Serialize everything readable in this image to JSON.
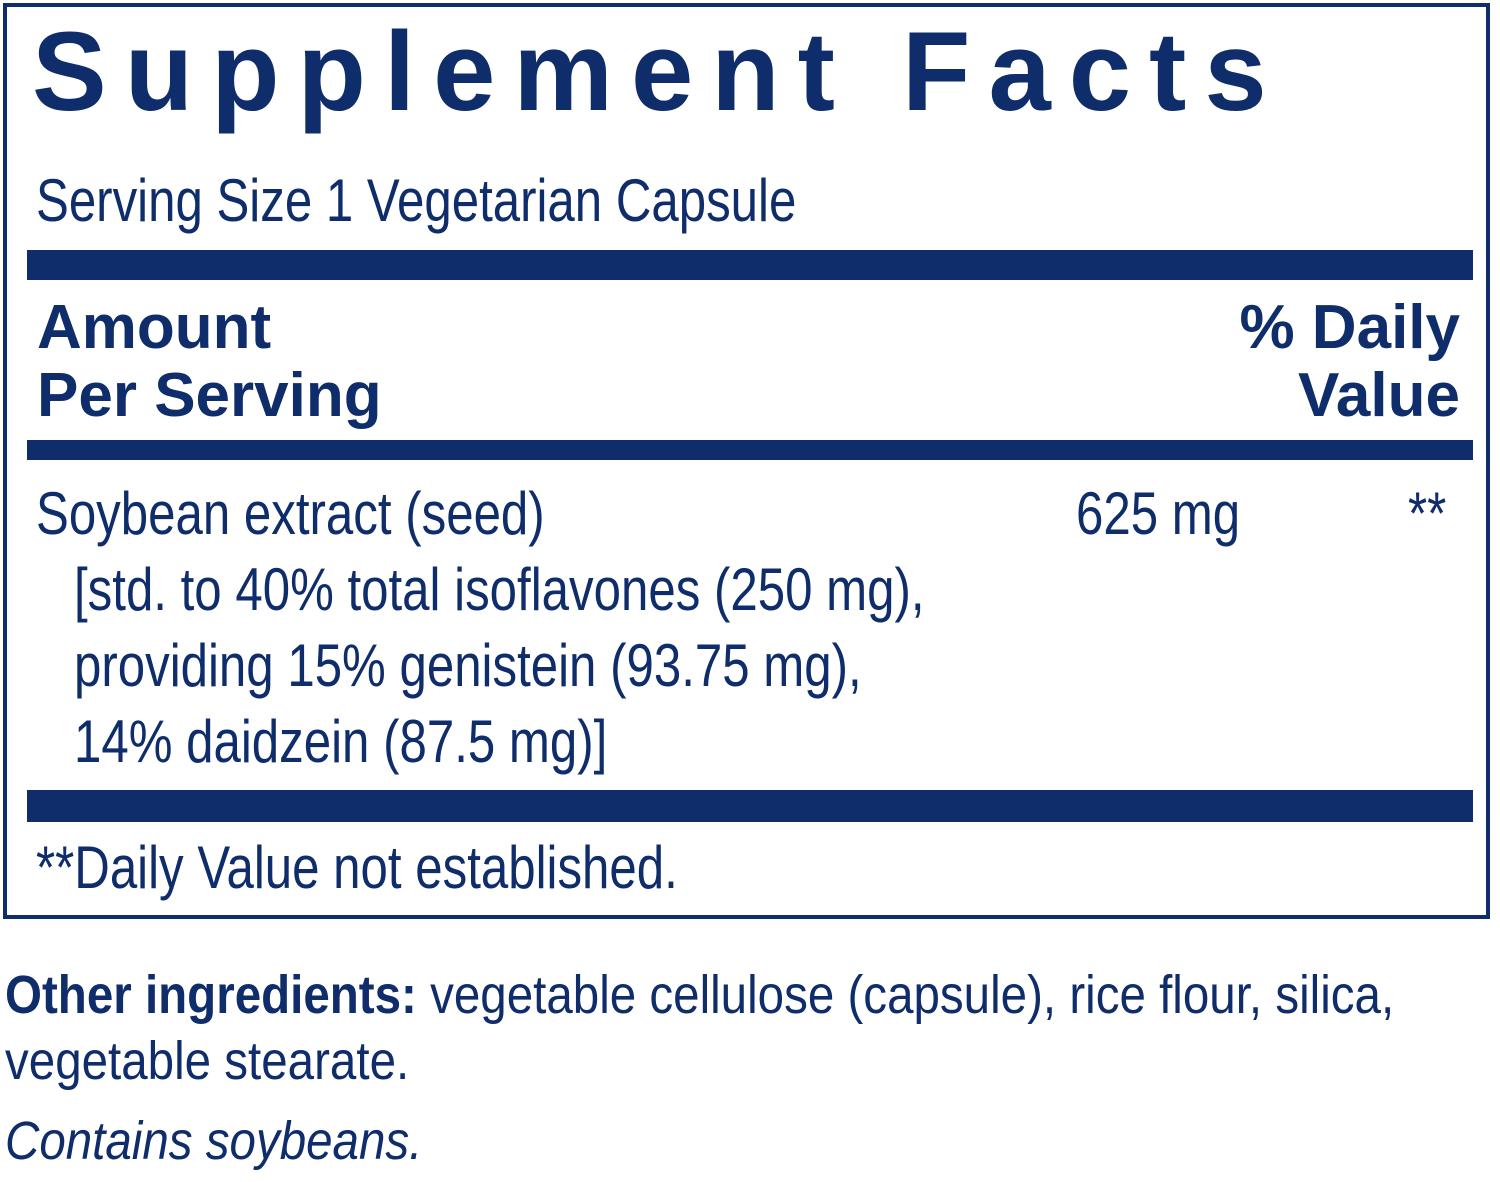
{
  "title": "Supplement Facts",
  "serving_size": "Serving Size 1 Vegetarian Capsule",
  "header": {
    "amount_l1": "Amount",
    "amount_l2": "Per Serving",
    "dv_l1": "% Daily",
    "dv_l2": "Value"
  },
  "ingredient": {
    "name": "Soybean extract (seed)",
    "amount": "625 mg",
    "dv": "**",
    "detail": [
      "[std. to 40% total isoflavones (250 mg),",
      "providing 15% genistein (93.75 mg),",
      "14% daidzein (87.5 mg)]"
    ]
  },
  "footnote": "**Daily Value not established.",
  "other_ingredients": {
    "label": "Other ingredients:",
    "text": " vegetable cellulose (capsule), rice flour, silica, vegetable stearate."
  },
  "contains": "Contains soybeans.",
  "colors": {
    "brand": "#0f2d6b"
  }
}
